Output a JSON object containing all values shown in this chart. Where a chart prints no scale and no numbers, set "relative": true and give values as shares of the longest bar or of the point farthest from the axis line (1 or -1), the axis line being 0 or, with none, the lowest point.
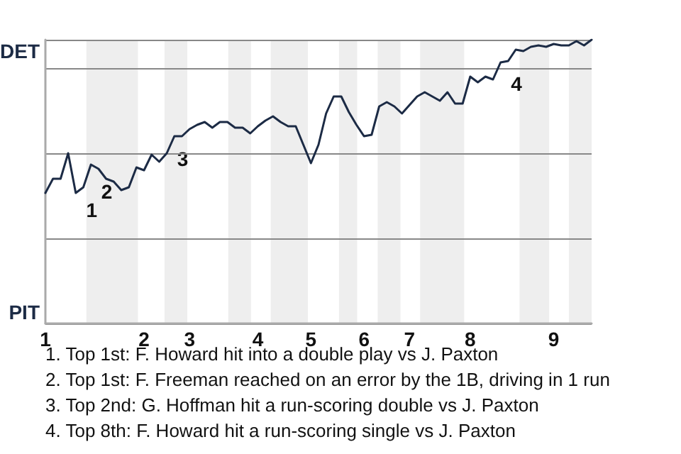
{
  "chart_data": {
    "type": "line",
    "categories": [
      "1",
      null,
      null,
      null,
      null,
      null,
      null,
      null,
      null,
      null,
      null,
      null,
      null,
      "2",
      null,
      null,
      null,
      null,
      null,
      "3",
      null,
      null,
      null,
      null,
      null,
      null,
      null,
      null,
      "4",
      null,
      null,
      null,
      null,
      null,
      null,
      "5",
      null,
      null,
      null,
      null,
      null,
      null,
      "6",
      null,
      null,
      null,
      null,
      null,
      "7",
      null,
      null,
      null,
      null,
      null,
      null,
      null,
      "8",
      null,
      null,
      null,
      null,
      null,
      null,
      null,
      null,
      null,
      null,
      "9",
      null,
      null,
      null,
      null,
      null
    ],
    "series": [
      {
        "color": "#1c2b45",
        "values": [
          0.46,
          0.51,
          0.51,
          0.6,
          0.46,
          0.48,
          0.56,
          0.545,
          0.51,
          0.5,
          0.47,
          0.48,
          0.55,
          0.54,
          0.595,
          0.57,
          0.6,
          0.66,
          0.66,
          0.685,
          0.7,
          0.71,
          0.69,
          0.71,
          0.71,
          0.69,
          0.69,
          0.67,
          0.695,
          0.715,
          0.73,
          0.71,
          0.695,
          0.695,
          0.63,
          0.565,
          0.63,
          0.74,
          0.8,
          0.8,
          0.745,
          0.7,
          0.66,
          0.665,
          0.765,
          0.78,
          0.765,
          0.74,
          0.77,
          0.8,
          0.815,
          0.8,
          0.785,
          0.815,
          0.775,
          0.775,
          0.87,
          0.85,
          0.87,
          0.86,
          0.92,
          0.925,
          0.965,
          0.96,
          0.975,
          0.98,
          0.975,
          0.985,
          0.98,
          0.98,
          0.995,
          0.98,
          1
        ]
      }
    ],
    "relative": true,
    "grid": "y",
    "marker": "none",
    "line_style": "solid",
    "annotations": [
      {
        "text": "1",
        "y": 0.48
      },
      {
        "text": "2",
        "y": 0.545
      },
      {
        "text": "3",
        "y": 0.66
      },
      {
        "text": "4",
        "y": 0.925
      },
      "DET",
      "PIT",
      "1. Top 1st: F. Howard hit into a double play vs J. Paxton",
      "2. Top 1st: F. Freeman reached on an error by the 1B, driving in 1 run",
      "3. Top 2nd: G. Hoffman hit a run-scoring double vs J. Paxton",
      "4. Top 8th: F. Howard hit a run-scoring single vs J. Paxton"
    ]
  }
}
